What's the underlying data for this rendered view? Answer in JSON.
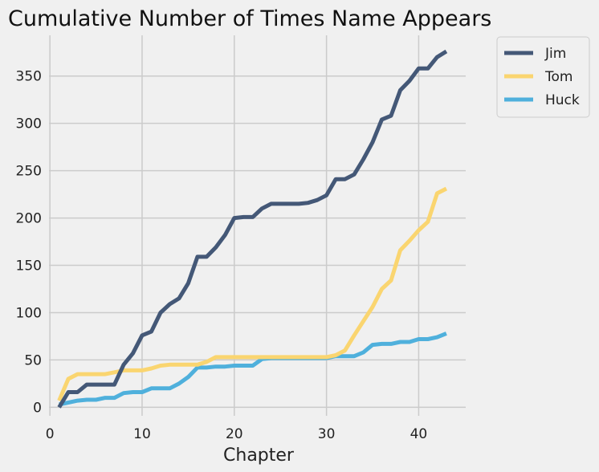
{
  "chart_data": {
    "type": "line",
    "title": "Cumulative Number of Times Name Appears",
    "xlabel": "Chapter",
    "ylabel": "",
    "xlim": [
      -0.1,
      45.1
    ],
    "ylim": [
      -9,
      393
    ],
    "xticks": [
      0,
      10,
      20,
      30,
      40
    ],
    "yticks": [
      0,
      50,
      100,
      150,
      200,
      250,
      300,
      350
    ],
    "grid": true,
    "legend_position": "outside-top-right",
    "x": [
      1,
      2,
      3,
      4,
      5,
      6,
      7,
      8,
      9,
      10,
      11,
      12,
      13,
      14,
      15,
      16,
      17,
      18,
      19,
      20,
      21,
      22,
      23,
      24,
      25,
      26,
      27,
      28,
      29,
      30,
      31,
      32,
      33,
      34,
      35,
      36,
      37,
      38,
      39,
      40,
      41,
      42,
      43
    ],
    "series": [
      {
        "name": "Jim",
        "color": "#445877",
        "values": [
          0,
          16,
          16,
          24,
          24,
          24,
          24,
          45,
          57,
          76,
          80,
          100,
          109,
          115,
          131,
          159,
          159,
          169,
          182,
          200,
          201,
          201,
          210,
          215,
          215,
          215,
          215,
          216,
          219,
          224,
          241,
          241,
          246,
          262,
          280,
          304,
          308,
          335,
          345,
          358,
          358,
          370,
          376
        ]
      },
      {
        "name": "Tom",
        "color": "#fad570",
        "values": [
          7,
          30,
          35,
          35,
          35,
          35,
          37,
          39,
          39,
          39,
          41,
          44,
          45,
          45,
          45,
          45,
          48,
          53,
          53,
          53,
          53,
          53,
          53,
          53,
          53,
          53,
          53,
          53,
          53,
          53,
          55,
          60,
          76,
          91,
          106,
          125,
          134,
          166,
          176,
          187,
          196,
          226,
          231
        ]
      },
      {
        "name": "Huck",
        "color": "#4fb0dc",
        "values": [
          3,
          5,
          7,
          8,
          8,
          10,
          10,
          15,
          16,
          16,
          20,
          20,
          20,
          25,
          32,
          42,
          42,
          43,
          43,
          44,
          44,
          44,
          51,
          52,
          52,
          52,
          52,
          52,
          52,
          52,
          54,
          54,
          54,
          58,
          66,
          67,
          67,
          69,
          69,
          72,
          72,
          74,
          78
        ]
      }
    ]
  }
}
